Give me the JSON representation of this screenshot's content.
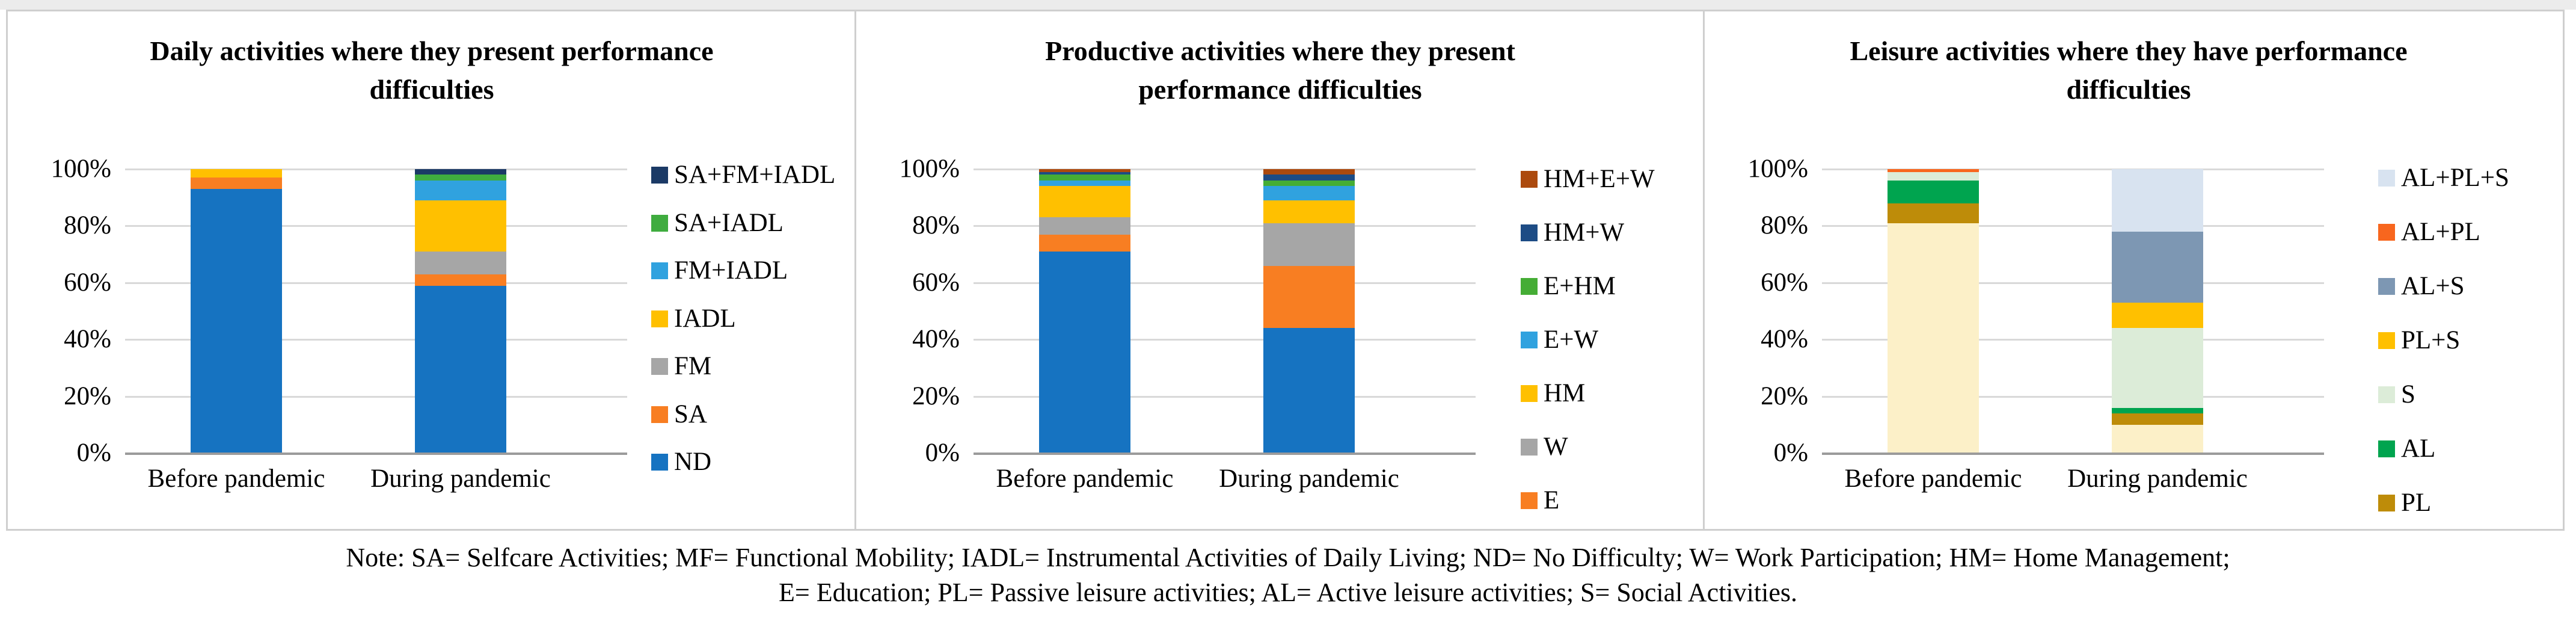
{
  "figure": {
    "y_axis_ticks_top_to_bottom": [
      "100%",
      "80%",
      "60%",
      "40%",
      "20%",
      "0%"
    ],
    "categories": [
      "Before pandemic",
      "During pandemic"
    ],
    "note": {
      "line1": "Note: SA= Selfcare Activities; MF= Functional Mobility; IADL= Instrumental Activities of Daily Living; ND= No Difficulty; W= Work Participation; HM= Home Management;",
      "line2": "E= Education; PL= Passive leisure activities; AL= Active leisure activities; S= Social Activities."
    },
    "grid_color": "#D9D9D9",
    "axis_color": "#9B9B9B"
  },
  "chart_data": [
    {
      "type": "bar",
      "stacked": true,
      "unit": "percent",
      "ylim": [
        0,
        100
      ],
      "title": "Daily activities where they present performance difficulties",
      "title_line1": "Daily activities where they present performance",
      "title_line2": "difficulties",
      "categories": [
        "Before pandemic",
        "During pandemic"
      ],
      "legend_position": "right",
      "legend_top_to_bottom": [
        {
          "label": "SA+FM+IADL",
          "color": "#1B3A66"
        },
        {
          "label": "SA+IADL",
          "color": "#3FAC3F"
        },
        {
          "label": "FM+IADL",
          "color": "#30A2DF"
        },
        {
          "label": "IADL",
          "color": "#FFC000"
        },
        {
          "label": "FM",
          "color": "#A6A6A6"
        },
        {
          "label": "SA",
          "color": "#F87E22"
        },
        {
          "label": "ND",
          "color": "#1673C1"
        }
      ],
      "series_bottom_to_top": [
        {
          "name": "ND",
          "color": "#1673C1",
          "values": [
            93,
            59
          ]
        },
        {
          "name": "SA",
          "color": "#F87E22",
          "values": [
            4,
            4
          ]
        },
        {
          "name": "FM",
          "color": "#A6A6A6",
          "values": [
            0,
            8
          ]
        },
        {
          "name": "IADL",
          "color": "#FFC000",
          "values": [
            3,
            18
          ]
        },
        {
          "name": "FM+IADL",
          "color": "#30A2DF",
          "values": [
            0,
            7
          ]
        },
        {
          "name": "SA+IADL",
          "color": "#3FAC3F",
          "values": [
            0,
            2
          ]
        },
        {
          "name": "SA+FM+IADL",
          "color": "#1B3A66",
          "values": [
            0,
            2
          ]
        }
      ]
    },
    {
      "type": "bar",
      "stacked": true,
      "unit": "percent",
      "ylim": [
        0,
        100
      ],
      "title": "Productive activities where they present performance difficulties",
      "title_line1": "Productive activities where they present",
      "title_line2": "performance difficulties",
      "categories": [
        "Before pandemic",
        "During pandemic"
      ],
      "legend_position": "right",
      "legend_top_to_bottom": [
        {
          "label": "HM+E+W",
          "color": "#AC4A0E"
        },
        {
          "label": "HM+W",
          "color": "#1D4C85"
        },
        {
          "label": "E+HM",
          "color": "#45AD35"
        },
        {
          "label": "E+W",
          "color": "#30A2DF"
        },
        {
          "label": "HM",
          "color": "#FFC000"
        },
        {
          "label": "W",
          "color": "#A6A6A6"
        },
        {
          "label": "E",
          "color": "#F87E22"
        }
      ],
      "series_bottom_to_top": [
        {
          "name": "ND",
          "color": "#1673C1",
          "values": [
            71,
            44
          ]
        },
        {
          "name": "E",
          "color": "#F87E22",
          "values": [
            6,
            22
          ]
        },
        {
          "name": "W",
          "color": "#A6A6A6",
          "values": [
            6,
            15
          ]
        },
        {
          "name": "HM",
          "color": "#FFC000",
          "values": [
            11,
            8
          ]
        },
        {
          "name": "E+W",
          "color": "#30A2DF",
          "values": [
            2,
            5
          ]
        },
        {
          "name": "E+HM",
          "color": "#45AD35",
          "values": [
            2,
            2
          ]
        },
        {
          "name": "HM+W",
          "color": "#1D4C85",
          "values": [
            1,
            2
          ]
        },
        {
          "name": "HM+E+W",
          "color": "#AC4A0E",
          "values": [
            1,
            2
          ]
        }
      ]
    },
    {
      "type": "bar",
      "stacked": true,
      "unit": "percent",
      "ylim": [
        0,
        100
      ],
      "title": "Leisure activities where they have performance difficulties",
      "title_line1": "Leisure activities where they have performance",
      "title_line2": "difficulties",
      "categories": [
        "Before pandemic",
        "During pandemic"
      ],
      "legend_position": "right",
      "legend_top_to_bottom": [
        {
          "label": "AL+PL+S",
          "color": "#D8E3F0"
        },
        {
          "label": "AL+PL",
          "color": "#F8661E"
        },
        {
          "label": "AL+S",
          "color": "#7D97B3"
        },
        {
          "label": "PL+S",
          "color": "#FFC000"
        },
        {
          "label": "S",
          "color": "#DCECD8"
        },
        {
          "label": "AL",
          "color": "#00A44F"
        },
        {
          "label": "PL",
          "color": "#BE8C09"
        }
      ],
      "series_bottom_to_top": [
        {
          "name": "ND",
          "color": "#FCF0C8",
          "values": [
            81,
            10
          ]
        },
        {
          "name": "PL",
          "color": "#BE8C09",
          "values": [
            7,
            4
          ]
        },
        {
          "name": "AL",
          "color": "#00A44F",
          "values": [
            8,
            2
          ]
        },
        {
          "name": "S",
          "color": "#DCECD8",
          "values": [
            3,
            28
          ]
        },
        {
          "name": "PL+S",
          "color": "#FFC000",
          "values": [
            0,
            9
          ]
        },
        {
          "name": "AL+S",
          "color": "#7D97B3",
          "values": [
            0,
            25
          ]
        },
        {
          "name": "AL+PL",
          "color": "#F8661E",
          "values": [
            1,
            0
          ]
        },
        {
          "name": "AL+PL+S",
          "color": "#D8E3F0",
          "values": [
            0,
            22
          ]
        }
      ]
    }
  ]
}
